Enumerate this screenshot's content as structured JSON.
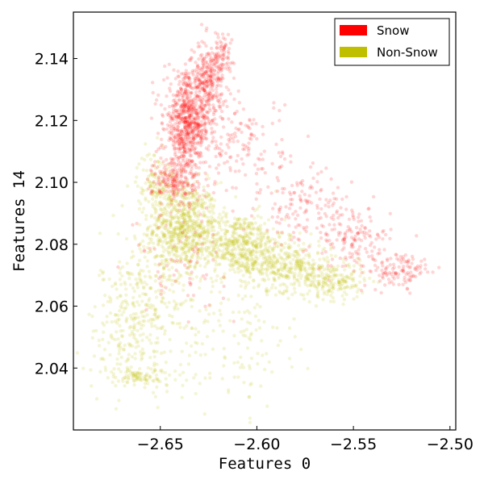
{
  "chart_data": {
    "type": "scatter",
    "title": "",
    "xlabel": "Features 0",
    "ylabel": "Features 14",
    "xlim": [
      -2.695,
      -2.497
    ],
    "ylim": [
      2.02,
      2.155
    ],
    "xticks": [
      -2.65,
      -2.6,
      -2.55,
      -2.5
    ],
    "xtick_labels": [
      "−2.65",
      "−2.60",
      "−2.55",
      "−2.50"
    ],
    "yticks": [
      2.04,
      2.06,
      2.08,
      2.1,
      2.12,
      2.14
    ],
    "ytick_labels": [
      "2.04",
      "2.06",
      "2.08",
      "2.10",
      "2.12",
      "2.14"
    ],
    "grid": false,
    "legend_position": "top-right",
    "series": [
      {
        "name": "Snow",
        "color": "#ff0000",
        "clusters": [
          {
            "center": [
              -2.636,
              2.119
            ],
            "spread": [
              0.006,
              0.008
            ],
            "count": 700
          },
          {
            "center": [
              -2.625,
              2.133
            ],
            "spread": [
              0.004,
              0.006
            ],
            "count": 260
          },
          {
            "center": [
              -2.618,
              2.142
            ],
            "spread": [
              0.003,
              0.003
            ],
            "count": 60
          },
          {
            "center": [
              -2.642,
              2.1
            ],
            "spread": [
              0.006,
              0.004
            ],
            "count": 180
          },
          {
            "center": [
              -2.61,
              2.112
            ],
            "spread": [
              0.012,
              0.008
            ],
            "count": 160
          },
          {
            "center": [
              -2.575,
              2.092
            ],
            "spread": [
              0.012,
              0.006
            ],
            "count": 140
          },
          {
            "center": [
              -2.55,
              2.081
            ],
            "spread": [
              0.01,
              0.005
            ],
            "count": 140
          },
          {
            "center": [
              -2.525,
              2.071
            ],
            "spread": [
              0.008,
              0.003
            ],
            "count": 110
          },
          {
            "center": [
              -2.64,
              2.075
            ],
            "spread": [
              0.012,
              0.008
            ],
            "count": 70
          }
        ]
      },
      {
        "name": "Non-Snow",
        "color": "#bfbf00",
        "clusters": [
          {
            "center": [
              -2.638,
              2.086
            ],
            "spread": [
              0.009,
              0.007
            ],
            "count": 650
          },
          {
            "center": [
              -2.61,
              2.08
            ],
            "spread": [
              0.012,
              0.005
            ],
            "count": 500
          },
          {
            "center": [
              -2.585,
              2.073
            ],
            "spread": [
              0.012,
              0.004
            ],
            "count": 350
          },
          {
            "center": [
              -2.56,
              2.068
            ],
            "spread": [
              0.008,
              0.003
            ],
            "count": 180
          },
          {
            "center": [
              -2.652,
              2.1
            ],
            "spread": [
              0.005,
              0.005
            ],
            "count": 120
          },
          {
            "center": [
              -2.655,
              2.065
            ],
            "spread": [
              0.013,
              0.01
            ],
            "count": 260
          },
          {
            "center": [
              -2.665,
              2.048
            ],
            "spread": [
              0.012,
              0.008
            ],
            "count": 150
          },
          {
            "center": [
              -2.61,
              2.05
            ],
            "spread": [
              0.014,
              0.012
            ],
            "count": 130
          },
          {
            "center": [
              -2.66,
              2.037
            ],
            "spread": [
              0.012,
              0.0015
            ],
            "count": 90
          }
        ]
      }
    ]
  }
}
